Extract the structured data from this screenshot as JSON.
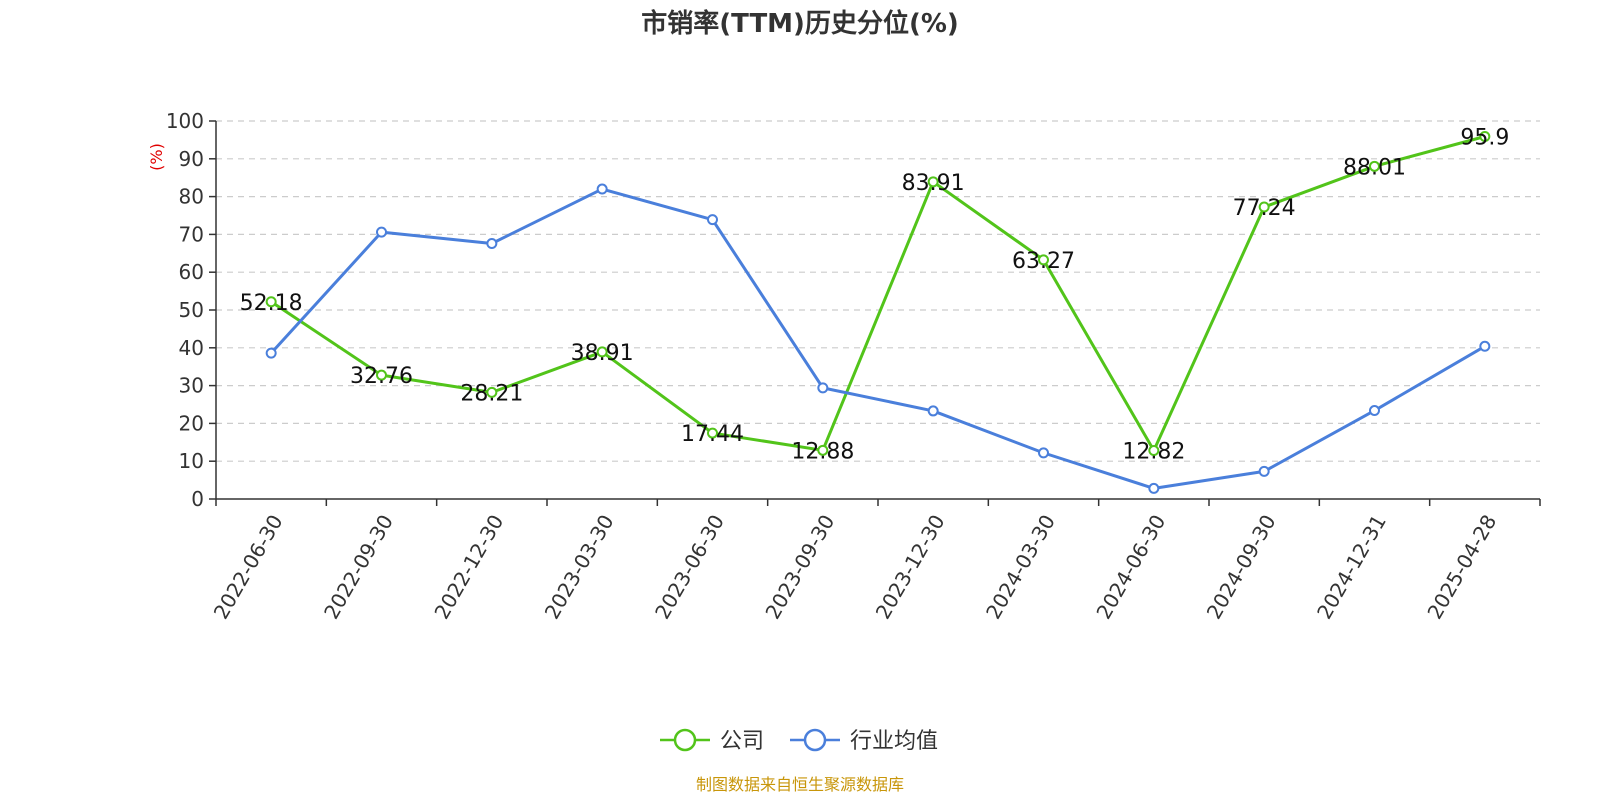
{
  "chart_data": {
    "type": "line",
    "title": "市销率(TTM)历史分位(%)",
    "ylabel": "(%)",
    "xlabel": "",
    "ylim": [
      0,
      100
    ],
    "yticks": [
      0,
      10,
      20,
      30,
      40,
      50,
      60,
      70,
      80,
      90,
      100
    ],
    "grid": true,
    "legend_position": "bottom-center",
    "categories": [
      "2022-06-30",
      "2022-09-30",
      "2022-12-30",
      "2023-03-30",
      "2023-06-30",
      "2023-09-30",
      "2023-12-30",
      "2024-03-30",
      "2024-06-30",
      "2024-09-30",
      "2024-12-31",
      "2025-04-28"
    ],
    "series": [
      {
        "name": "公司",
        "color": "#52c41a",
        "show_labels": true,
        "values": [
          52.18,
          32.76,
          28.21,
          38.91,
          17.44,
          12.88,
          83.91,
          63.27,
          12.82,
          77.24,
          88.01,
          95.9
        ]
      },
      {
        "name": "行业均值",
        "color": "#4a7fdb",
        "show_labels": false,
        "values": [
          38.6,
          70.6,
          67.6,
          82.0,
          73.9,
          29.4,
          23.3,
          12.2,
          2.8,
          7.3,
          23.4,
          40.4
        ]
      }
    ],
    "source": "制图数据来自恒生聚源数据库"
  }
}
